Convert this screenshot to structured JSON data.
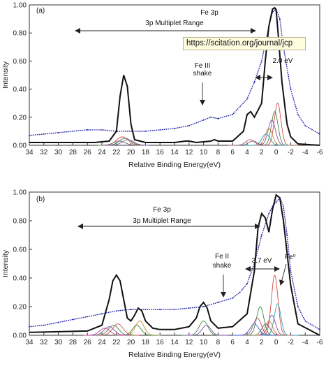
{
  "watermark": "https://scitation.org/journal/jcp",
  "chart_data": [
    {
      "panel": "(a)",
      "type": "line",
      "xlabel": "Relative Binding Energy(eV)",
      "ylabel": "Intensity",
      "xlim": [
        34,
        -6
      ],
      "ylim": [
        0,
        1.0
      ],
      "xticks": [
        34,
        32,
        30,
        28,
        26,
        24,
        22,
        20,
        18,
        16,
        14,
        12,
        10,
        8,
        6,
        4,
        2,
        0,
        -2,
        -4,
        -6
      ],
      "yticks": [
        "0.00",
        "0.20",
        "0.40",
        "0.60",
        "0.80",
        "1.00"
      ],
      "annotations": {
        "fe3p": "Fe 3p",
        "range": "3p Multiplet Range",
        "shake1": "Fe III",
        "shake2": "shake",
        "split": "2.0 eV"
      },
      "series": [
        {
          "role": "data",
          "color": "#1a1aa8",
          "x": [
            34,
            32,
            30,
            28,
            26,
            24,
            22,
            20,
            18,
            16,
            14,
            12,
            10,
            9,
            8,
            6,
            4,
            3,
            2,
            1,
            0.5,
            0,
            -0.5,
            -1,
            -2,
            -3,
            -4,
            -6
          ],
          "y": [
            0.07,
            0.08,
            0.09,
            0.1,
            0.11,
            0.11,
            0.1,
            0.1,
            0.1,
            0.11,
            0.12,
            0.14,
            0.18,
            0.2,
            0.19,
            0.22,
            0.33,
            0.45,
            0.6,
            0.85,
            0.95,
            0.97,
            0.9,
            0.7,
            0.4,
            0.22,
            0.14,
            0.08
          ]
        },
        {
          "role": "fit",
          "color": "#111111",
          "x": [
            34,
            25,
            23,
            22,
            21.5,
            21,
            20.5,
            20,
            19.5,
            18,
            14,
            12.5,
            12,
            11,
            9,
            8.5,
            8,
            6,
            4.5,
            4,
            3.5,
            3,
            2,
            1.5,
            1,
            0.5,
            0.2,
            0,
            -0.3,
            -0.8,
            -1.5,
            -2,
            -3,
            -6
          ],
          "y": [
            0.02,
            0.02,
            0.03,
            0.1,
            0.35,
            0.5,
            0.42,
            0.15,
            0.04,
            0.02,
            0.02,
            0.03,
            0.03,
            0.02,
            0.03,
            0.04,
            0.03,
            0.03,
            0.1,
            0.22,
            0.24,
            0.2,
            0.3,
            0.6,
            0.85,
            0.97,
            0.98,
            0.96,
            0.78,
            0.45,
            0.15,
            0.06,
            0.01,
            0.0
          ]
        }
      ],
      "multiplet": {
        "pos": [
          -0.2,
          0.2,
          0.6,
          1.0,
          1.4,
          3.6,
          3.2,
          21.2,
          20.8,
          20.4,
          21.6
        ],
        "amp": [
          0.3,
          0.24,
          0.18,
          0.12,
          0.08,
          0.04,
          0.03,
          0.06,
          0.05,
          0.04,
          0.03
        ],
        "sigma": [
          0.45,
          0.45,
          0.5,
          0.5,
          0.55,
          0.6,
          0.6,
          0.8,
          0.8,
          0.8,
          0.8
        ],
        "colors": [
          "#d94a4a",
          "#3a8a3a",
          "#8a4ab0",
          "#cc8a2a",
          "#2a9ab0",
          "#c04080",
          "#6a6a6a",
          "#d94a4a",
          "#3a8a3a",
          "#8a4ab0",
          "#6a6a6a"
        ]
      }
    },
    {
      "panel": "(b)",
      "type": "line",
      "xlabel": "Relative Binding Energy(eV)",
      "ylabel": "Intensity",
      "xlim": [
        34,
        -6
      ],
      "ylim": [
        0,
        1.0
      ],
      "xticks": [
        34,
        32,
        30,
        28,
        26,
        24,
        22,
        20,
        18,
        16,
        14,
        12,
        10,
        8,
        6,
        4,
        2,
        0,
        -2,
        -4,
        -6
      ],
      "yticks": [
        "0.00",
        "0.20",
        "0.40",
        "0.60",
        "0.80",
        "1.00"
      ],
      "annotations": {
        "fe3p": "Fe 3p",
        "range": "3p Multiplet Range",
        "shake1": "Fe II",
        "shake2": "shake",
        "split": "3.7 eV",
        "fe0": "Fe⁰"
      },
      "series": [
        {
          "role": "data",
          "color": "#1a1aa8",
          "x": [
            34,
            32,
            30,
            28,
            26,
            24,
            22,
            20,
            18,
            16,
            14,
            12,
            10,
            8,
            6,
            5,
            4,
            3,
            2.5,
            2,
            1,
            0.5,
            0,
            -0.5,
            -1,
            -1.5,
            -2,
            -3,
            -4,
            -6
          ],
          "y": [
            0.06,
            0.07,
            0.09,
            0.11,
            0.13,
            0.15,
            0.17,
            0.18,
            0.18,
            0.18,
            0.18,
            0.19,
            0.2,
            0.23,
            0.26,
            0.3,
            0.36,
            0.5,
            0.6,
            0.7,
            0.85,
            0.9,
            0.93,
            0.96,
            0.9,
            0.7,
            0.45,
            0.2,
            0.1,
            0.04
          ]
        },
        {
          "role": "fit",
          "color": "#111111",
          "x": [
            34,
            26,
            24,
            23,
            22.5,
            22,
            21.5,
            21,
            20.5,
            20,
            19.5,
            19,
            18.5,
            18,
            17,
            16,
            14,
            12,
            11,
            10.5,
            10,
            9.5,
            9,
            8,
            6,
            4,
            3,
            2.5,
            2,
            1.5,
            1,
            0.5,
            0,
            -0.5,
            -1,
            -2,
            -3,
            -6
          ],
          "y": [
            0.02,
            0.03,
            0.07,
            0.25,
            0.38,
            0.42,
            0.38,
            0.25,
            0.12,
            0.1,
            0.14,
            0.19,
            0.17,
            0.1,
            0.05,
            0.04,
            0.04,
            0.06,
            0.12,
            0.2,
            0.23,
            0.19,
            0.1,
            0.05,
            0.06,
            0.15,
            0.45,
            0.75,
            0.85,
            0.82,
            0.72,
            0.88,
            0.98,
            0.96,
            0.8,
            0.35,
            0.08,
            0.0
          ]
        }
      ],
      "multiplet": {
        "pos": [
          0.2,
          -0.2,
          0.6,
          1.0,
          1.4,
          2.2,
          2.6,
          3.0,
          10.0,
          9.6,
          18.8,
          19.2,
          21.8,
          22.4,
          23.0,
          23.6
        ],
        "amp": [
          0.42,
          0.22,
          0.14,
          0.1,
          0.08,
          0.2,
          0.12,
          0.08,
          0.1,
          0.07,
          0.1,
          0.07,
          0.08,
          0.07,
          0.06,
          0.05
        ],
        "sigma": [
          0.45,
          0.45,
          0.5,
          0.5,
          0.55,
          0.5,
          0.55,
          0.6,
          0.6,
          0.6,
          0.6,
          0.6,
          0.7,
          0.7,
          0.7,
          0.7
        ],
        "colors": [
          "#d94a4a",
          "#2a9ab0",
          "#8a4ab0",
          "#cc8a2a",
          "#6a6a6a",
          "#3a8a3a",
          "#c04080",
          "#2a60c0",
          "#3a8a3a",
          "#8a4ab0",
          "#cc8a2a",
          "#3a8a3a",
          "#d94a4a",
          "#3a8a3a",
          "#8a4ab0",
          "#c04080"
        ]
      }
    }
  ]
}
